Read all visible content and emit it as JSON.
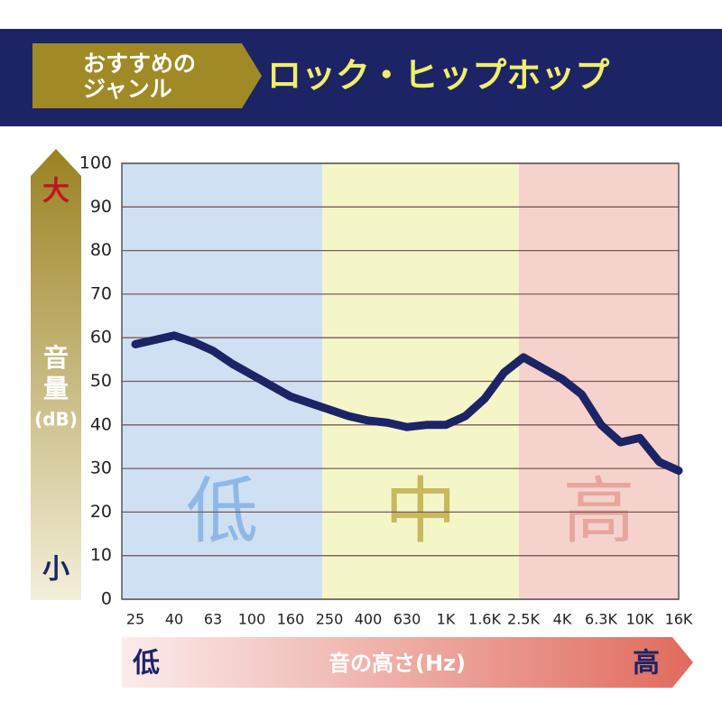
{
  "header": {
    "tag": [
      "おすすめの",
      "ジャンル"
    ],
    "title": "ロック・ヒップホップ"
  },
  "chart_data": {
    "type": "line",
    "y_axis": {
      "label": [
        "音",
        "量",
        "(dB)"
      ],
      "top": "大",
      "bottom": "小"
    },
    "x_axis": {
      "label": "音の高さ(Hz)",
      "left": "低",
      "right": "高"
    },
    "bands": [
      {
        "label": "低",
        "color": "#cfe0f3",
        "text_color": "#8fb8e6"
      },
      {
        "label": "中",
        "color": "#f5f6c8",
        "text_color": "#c8b85e"
      },
      {
        "label": "高",
        "color": "#f6d2cc",
        "text_color": "#e7a69c"
      }
    ],
    "categories": [
      "25",
      null,
      "40",
      null,
      "63",
      null,
      "100",
      null,
      "160",
      null,
      "250",
      null,
      "400",
      null,
      "630",
      null,
      "1K",
      null,
      "1.6K",
      null,
      "2.5K",
      null,
      "4K",
      null,
      "6.3K",
      null,
      "10K",
      null,
      "16K"
    ],
    "series": [
      {
        "color": "#1c2466",
        "values": [
          58.5,
          59.5,
          60.5,
          59,
          57,
          54,
          51.5,
          49,
          46.5,
          45,
          43.5,
          42,
          41,
          40.5,
          39.5,
          40,
          40,
          42,
          46,
          52,
          55.5,
          53,
          50.5,
          47,
          40,
          36,
          37,
          31.5,
          29.5
        ]
      }
    ],
    "ylim": [
      0,
      100
    ],
    "yticks": [
      0,
      10,
      20,
      30,
      40,
      50,
      60,
      70,
      80,
      90,
      100
    ],
    "grid": true
  }
}
